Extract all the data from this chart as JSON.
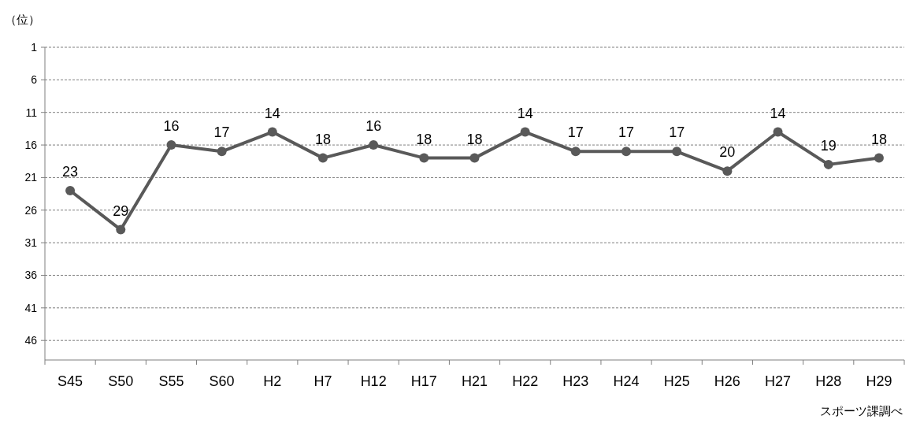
{
  "chart_data": {
    "type": "line",
    "ylabel": "（位）",
    "categories": [
      "S45",
      "S50",
      "S55",
      "S60",
      "H2",
      "H7",
      "H12",
      "H17",
      "H21",
      "H22",
      "H23",
      "H24",
      "H25",
      "H26",
      "H27",
      "H28",
      "H29"
    ],
    "series": [
      {
        "color": "#595959",
        "values": [
          23,
          29,
          16,
          17,
          14,
          18,
          16,
          18,
          18,
          14,
          17,
          17,
          17,
          20,
          14,
          19,
          18
        ]
      }
    ],
    "ylim": [
      49,
      1
    ],
    "yticks": [
      1,
      6,
      11,
      16,
      21,
      26,
      31,
      36,
      41,
      46
    ],
    "grid": "y",
    "marker": "circle",
    "line_style": "solid",
    "data_labels": true,
    "annotations": [
      "スポーツ課調べ"
    ]
  }
}
